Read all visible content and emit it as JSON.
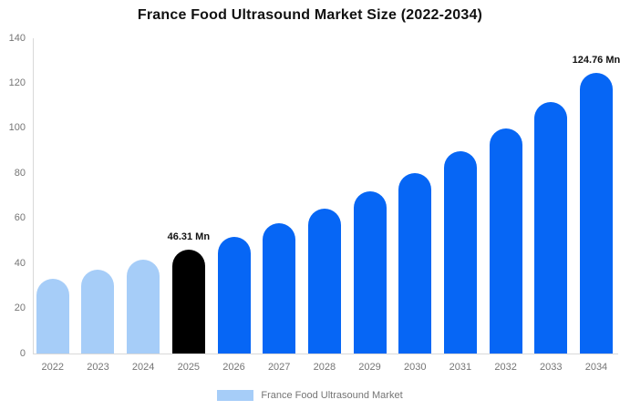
{
  "title": "France Food Ultrasound Market Size (2022-2034)",
  "legend": {
    "label": "France Food Ultrasound Market"
  },
  "colors": {
    "bar_default": "#0666F5",
    "bar_historical": "#A6CDF8",
    "bar_highlight": "#000000",
    "axis_line": "#D9D9D9",
    "tick_text": "#757575",
    "title_text": "#111111",
    "annotation_text": "#111111"
  },
  "chart_data": {
    "type": "bar",
    "title": "France Food Ultrasound Market Size (2022-2034)",
    "series_name": "France Food Ultrasound Market",
    "categories": [
      "2022",
      "2023",
      "2024",
      "2025",
      "2026",
      "2027",
      "2028",
      "2029",
      "2030",
      "2031",
      "2032",
      "2033",
      "2034"
    ],
    "values": [
      33.3,
      37.2,
      41.5,
      46.31,
      51.7,
      57.7,
      64.4,
      71.9,
      80.3,
      89.7,
      100.1,
      111.8,
      124.76
    ],
    "bar_color_keys": [
      "historical",
      "historical",
      "historical",
      "highlight",
      "default",
      "default",
      "default",
      "default",
      "default",
      "default",
      "default",
      "default",
      "default"
    ],
    "data_labels": [
      {
        "category": "2025",
        "text": "46.31 Mn"
      },
      {
        "category": "2034",
        "text": "124.76 Mn"
      }
    ],
    "xlabel": "",
    "ylabel": "",
    "ylim": [
      0,
      140
    ],
    "yticks": [
      0,
      20,
      40,
      60,
      80,
      100,
      120,
      140
    ],
    "grid": false,
    "legend_position": "bottom",
    "unit": "Mn"
  }
}
